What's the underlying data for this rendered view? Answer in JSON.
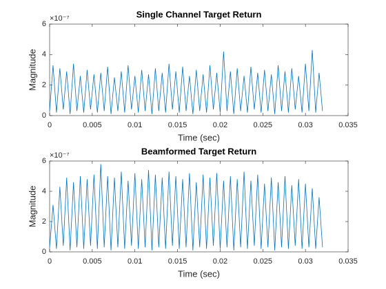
{
  "chart_data": [
    {
      "type": "line",
      "title": "Single Channel Target Return",
      "xlabel": "Time (sec)",
      "ylabel": "Magnitude",
      "y_exponent": "×10⁻⁷",
      "xlim": [
        0,
        0.035
      ],
      "xticks": [
        0,
        0.005,
        0.01,
        0.015,
        0.02,
        0.025,
        0.03,
        0.035
      ],
      "ylim": [
        0,
        6
      ],
      "yticks": [
        0,
        2,
        4,
        6
      ],
      "series": [
        {
          "color": "#0072bd",
          "x": [
            0,
            0.0004,
            0.0008,
            0.0012,
            0.0016,
            0.002,
            0.0024,
            0.0028,
            0.0032,
            0.0036,
            0.004,
            0.0044,
            0.0048,
            0.0052,
            0.0056,
            0.006,
            0.0064,
            0.0068,
            0.0072,
            0.0076,
            0.008,
            0.0084,
            0.0088,
            0.0092,
            0.0096,
            0.01,
            0.0104,
            0.0108,
            0.0112,
            0.0116,
            0.012,
            0.0124,
            0.0128,
            0.0132,
            0.0136,
            0.014,
            0.0144,
            0.0148,
            0.0152,
            0.0156,
            0.016,
            0.0164,
            0.0168,
            0.0172,
            0.0176,
            0.018,
            0.0184,
            0.0188,
            0.0192,
            0.0196,
            0.02,
            0.0204,
            0.0208,
            0.0212,
            0.0216,
            0.022,
            0.0224,
            0.0228,
            0.0232,
            0.0236,
            0.024,
            0.0244,
            0.0248,
            0.0252,
            0.0256,
            0.026,
            0.0264,
            0.0268,
            0.0272,
            0.0276,
            0.028,
            0.0284,
            0.0288,
            0.0292,
            0.0296,
            0.03,
            0.0304,
            0.0308,
            0.0312,
            0.0316,
            0.032
          ],
          "values": [
            0.3,
            3.3,
            0.2,
            3.1,
            0.4,
            2.9,
            0.1,
            3.4,
            0.3,
            2.6,
            0.2,
            3.0,
            0.4,
            2.7,
            0.2,
            2.8,
            0.3,
            3.2,
            0.1,
            2.5,
            0.3,
            2.9,
            0.2,
            3.3,
            0.4,
            2.6,
            0.2,
            3.0,
            0.3,
            2.7,
            0.1,
            3.1,
            0.3,
            2.8,
            0.2,
            3.4,
            0.4,
            2.9,
            0.2,
            3.2,
            0.3,
            2.6,
            0.1,
            3.0,
            0.3,
            2.7,
            0.2,
            3.3,
            0.4,
            2.8,
            0.2,
            4.2,
            0.3,
            2.9,
            0.1,
            3.1,
            0.3,
            2.6,
            0.2,
            3.2,
            0.4,
            2.8,
            0.2,
            3.0,
            0.3,
            2.7,
            0.1,
            3.3,
            0.3,
            2.9,
            0.2,
            3.1,
            0.4,
            2.6,
            0.2,
            3.4,
            0.3,
            4.3,
            0.2,
            2.8,
            0.3
          ]
        }
      ]
    },
    {
      "type": "line",
      "title": "Beamformed Target Return",
      "xlabel": "Time (sec)",
      "ylabel": "Magnitude",
      "y_exponent": "×10⁻⁷",
      "xlim": [
        0,
        0.035
      ],
      "xticks": [
        0,
        0.005,
        0.01,
        0.015,
        0.02,
        0.025,
        0.03,
        0.035
      ],
      "ylim": [
        0,
        6
      ],
      "yticks": [
        0,
        2,
        4,
        6
      ],
      "series": [
        {
          "color": "#0072bd",
          "x": [
            0,
            0.0004,
            0.0008,
            0.0012,
            0.0016,
            0.002,
            0.0024,
            0.0028,
            0.0032,
            0.0036,
            0.004,
            0.0044,
            0.0048,
            0.0052,
            0.0056,
            0.006,
            0.0064,
            0.0068,
            0.0072,
            0.0076,
            0.008,
            0.0084,
            0.0088,
            0.0092,
            0.0096,
            0.01,
            0.0104,
            0.0108,
            0.0112,
            0.0116,
            0.012,
            0.0124,
            0.0128,
            0.0132,
            0.0136,
            0.014,
            0.0144,
            0.0148,
            0.0152,
            0.0156,
            0.016,
            0.0164,
            0.0168,
            0.0172,
            0.0176,
            0.018,
            0.0184,
            0.0188,
            0.0192,
            0.0196,
            0.02,
            0.0204,
            0.0208,
            0.0212,
            0.0216,
            0.022,
            0.0224,
            0.0228,
            0.0232,
            0.0236,
            0.024,
            0.0244,
            0.0248,
            0.0252,
            0.0256,
            0.026,
            0.0264,
            0.0268,
            0.0272,
            0.0276,
            0.028,
            0.0284,
            0.0288,
            0.0292,
            0.0296,
            0.03,
            0.0304,
            0.0308,
            0.0312,
            0.0316,
            0.032
          ],
          "values": [
            0.3,
            3.1,
            0.2,
            4.3,
            0.4,
            4.9,
            0.1,
            4.6,
            0.3,
            5.0,
            0.2,
            4.8,
            0.4,
            5.1,
            0.2,
            5.8,
            0.3,
            5.0,
            0.1,
            4.9,
            0.3,
            5.3,
            0.2,
            4.7,
            0.4,
            5.2,
            0.2,
            4.8,
            0.3,
            5.4,
            0.1,
            5.1,
            0.3,
            4.9,
            0.2,
            5.3,
            0.4,
            5.0,
            0.2,
            4.8,
            0.3,
            5.2,
            0.1,
            4.6,
            0.3,
            5.1,
            0.2,
            4.9,
            0.4,
            5.2,
            0.2,
            4.7,
            0.3,
            5.0,
            0.1,
            4.8,
            0.3,
            5.3,
            0.2,
            4.7,
            0.4,
            5.1,
            0.2,
            4.5,
            0.3,
            4.9,
            0.1,
            4.6,
            0.3,
            5.0,
            0.2,
            4.4,
            0.4,
            4.8,
            0.2,
            4.5,
            0.3,
            4.2,
            0.2,
            3.6,
            0.3
          ]
        }
      ]
    }
  ]
}
